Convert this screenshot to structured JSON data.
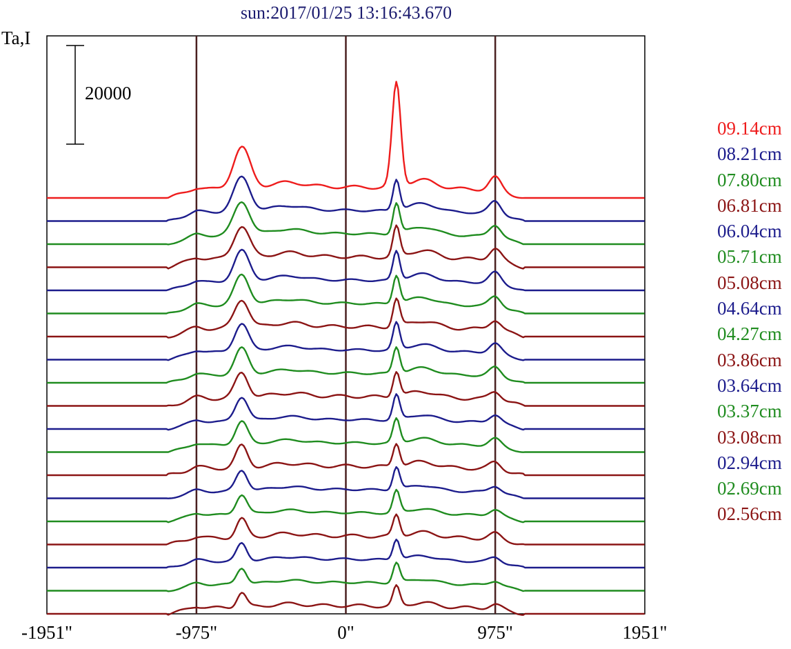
{
  "chart_data": {
    "type": "line",
    "title": "sun:2017/01/25 13:16:43.670",
    "ylabel": "Ta,I",
    "xlim": [
      -1951,
      1951
    ],
    "x_ticks": [
      "-1951\"",
      "-975\"",
      "0\"",
      "975\"",
      "1951\""
    ],
    "x_tick_values": [
      -1951,
      -975,
      0,
      975,
      1951
    ],
    "vertical_lines": [
      -975,
      0,
      975
    ],
    "scale_bar": {
      "label": "20000",
      "value": 20000
    },
    "legend_placement": "right",
    "series": [
      {
        "name": "09.14cm",
        "color": "#ee1c1c",
        "offset": 0
      },
      {
        "name": "08.21cm",
        "color": "#1c1c8c",
        "offset": -1
      },
      {
        "name": "07.80cm",
        "color": "#1f8c1f",
        "offset": -2
      },
      {
        "name": "06.81cm",
        "color": "#8b1414",
        "offset": -3
      },
      {
        "name": "06.04cm",
        "color": "#1c1c8c",
        "offset": -4
      },
      {
        "name": "05.71cm",
        "color": "#1f8c1f",
        "offset": -5
      },
      {
        "name": "05.08cm",
        "color": "#8b1414",
        "offset": -6
      },
      {
        "name": "04.64cm",
        "color": "#1c1c8c",
        "offset": -7
      },
      {
        "name": "04.27cm",
        "color": "#1f8c1f",
        "offset": -8
      },
      {
        "name": "03.86cm",
        "color": "#8b1414",
        "offset": -9
      },
      {
        "name": "03.64cm",
        "color": "#1c1c8c",
        "offset": -10
      },
      {
        "name": "03.37cm",
        "color": "#1f8c1f",
        "offset": -11
      },
      {
        "name": "03.08cm",
        "color": "#8b1414",
        "offset": -12
      },
      {
        "name": "02.94cm",
        "color": "#1c1c8c",
        "offset": -13
      },
      {
        "name": "02.69cm",
        "color": "#1f8c1f",
        "offset": -14
      },
      {
        "name": "02.56cm",
        "color": "#8b1414",
        "offset": -15
      },
      {
        "name": "",
        "color": "#1c1c8c",
        "offset": -16
      },
      {
        "name": "",
        "color": "#1f8c1f",
        "offset": -17
      },
      {
        "name": "",
        "color": "#8b1414",
        "offset": -18
      }
    ]
  }
}
